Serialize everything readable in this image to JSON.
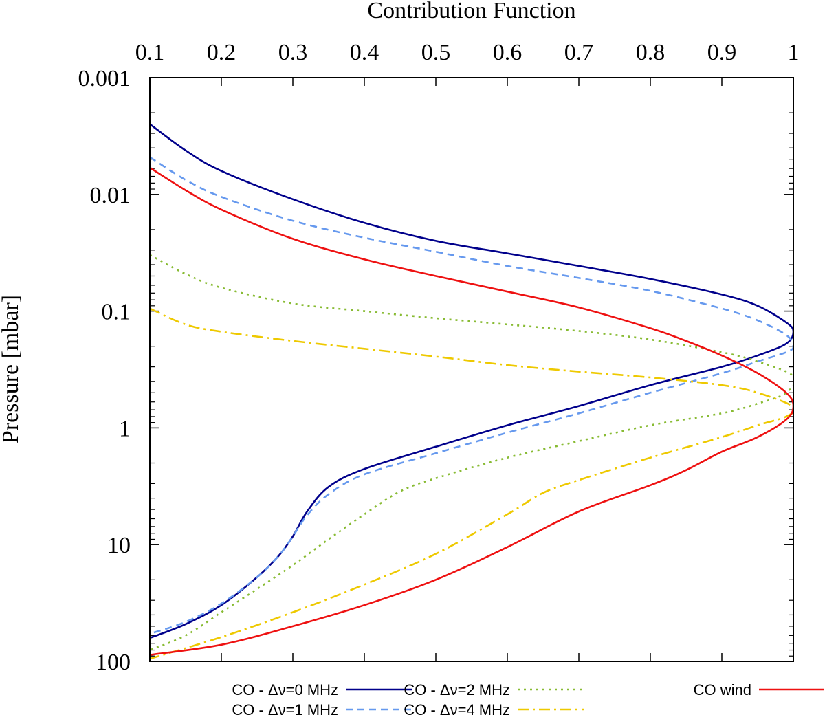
{
  "chart_data": {
    "type": "line",
    "title": "",
    "xlabel": "Contribution Function",
    "ylabel": "Pressure [mbar]",
    "x_axis_position": "top",
    "xlim": [
      0.1,
      1
    ],
    "ylim": [
      0.001,
      100
    ],
    "yscale": "log",
    "y_inverted": true,
    "grid": false,
    "legend_position": "bottom",
    "x_ticks": [
      0.1,
      0.2,
      0.3,
      0.4,
      0.5,
      0.6,
      0.7,
      0.8,
      0.9,
      1
    ],
    "x_tick_labels": [
      "0.1",
      "0.2",
      "0.3",
      "0.4",
      "0.5",
      "0.6",
      "0.7",
      "0.8",
      "0.9",
      "1"
    ],
    "y_ticks": [
      0.001,
      0.01,
      0.1,
      1,
      10,
      100
    ],
    "y_tick_labels": [
      "0.001",
      "0.01",
      "0.1",
      "1",
      "10",
      "100"
    ],
    "series": [
      {
        "name": "CO - Δν=0 MHz",
        "color": "#00008b",
        "dash": "solid",
        "points": [
          [
            0.1,
            0.0025
          ],
          [
            0.15,
            0.0042
          ],
          [
            0.2,
            0.0063
          ],
          [
            0.3,
            0.011
          ],
          [
            0.4,
            0.0175
          ],
          [
            0.5,
            0.025
          ],
          [
            0.6,
            0.032
          ],
          [
            0.7,
            0.041
          ],
          [
            0.8,
            0.053
          ],
          [
            0.9,
            0.072
          ],
          [
            0.95,
            0.09
          ],
          [
            0.99,
            0.125
          ],
          [
            1.0,
            0.15
          ],
          [
            0.99,
            0.19
          ],
          [
            0.95,
            0.24
          ],
          [
            0.9,
            0.3
          ],
          [
            0.8,
            0.43
          ],
          [
            0.7,
            0.65
          ],
          [
            0.6,
            0.95
          ],
          [
            0.5,
            1.45
          ],
          [
            0.4,
            2.25
          ],
          [
            0.35,
            3.2
          ],
          [
            0.32,
            5.2
          ],
          [
            0.3,
            8.5
          ],
          [
            0.28,
            12.5
          ],
          [
            0.25,
            19
          ],
          [
            0.2,
            33
          ],
          [
            0.15,
            48
          ],
          [
            0.1,
            63
          ]
        ]
      },
      {
        "name": "CO - Δν=1 MHz",
        "color": "#6699ee",
        "dash": "dashed",
        "points": [
          [
            0.1,
            0.0048
          ],
          [
            0.15,
            0.0075
          ],
          [
            0.2,
            0.0105
          ],
          [
            0.3,
            0.0168
          ],
          [
            0.4,
            0.0235
          ],
          [
            0.5,
            0.031
          ],
          [
            0.6,
            0.041
          ],
          [
            0.7,
            0.052
          ],
          [
            0.8,
            0.067
          ],
          [
            0.9,
            0.095
          ],
          [
            0.95,
            0.12
          ],
          [
            0.99,
            0.16
          ],
          [
            1.0,
            0.2
          ],
          [
            0.99,
            0.225
          ],
          [
            0.95,
            0.27
          ],
          [
            0.9,
            0.34
          ],
          [
            0.8,
            0.5
          ],
          [
            0.7,
            0.75
          ],
          [
            0.6,
            1.1
          ],
          [
            0.5,
            1.65
          ],
          [
            0.4,
            2.5
          ],
          [
            0.35,
            3.7
          ],
          [
            0.32,
            5.6
          ],
          [
            0.3,
            8.5
          ],
          [
            0.28,
            12.5
          ],
          [
            0.25,
            19
          ],
          [
            0.2,
            32
          ],
          [
            0.15,
            46
          ],
          [
            0.1,
            58
          ]
        ]
      },
      {
        "name": "CO - Δν=2 MHz",
        "color": "#88bb33",
        "dash": "dotted",
        "points": [
          [
            0.1,
            0.033
          ],
          [
            0.15,
            0.048
          ],
          [
            0.2,
            0.063
          ],
          [
            0.3,
            0.086
          ],
          [
            0.4,
            0.1
          ],
          [
            0.5,
            0.115
          ],
          [
            0.6,
            0.13
          ],
          [
            0.7,
            0.148
          ],
          [
            0.8,
            0.175
          ],
          [
            0.9,
            0.225
          ],
          [
            0.95,
            0.27
          ],
          [
            1.0,
            0.36
          ],
          [
            0.99,
            0.5
          ],
          [
            0.95,
            0.62
          ],
          [
            0.9,
            0.75
          ],
          [
            0.8,
            0.95
          ],
          [
            0.7,
            1.3
          ],
          [
            0.6,
            1.8
          ],
          [
            0.5,
            2.7
          ],
          [
            0.45,
            3.5
          ],
          [
            0.4,
            5.5
          ],
          [
            0.35,
            9
          ],
          [
            0.3,
            15
          ],
          [
            0.25,
            24
          ],
          [
            0.2,
            38
          ],
          [
            0.15,
            60
          ],
          [
            0.1,
            80
          ]
        ]
      },
      {
        "name": "CO - Δν=4 MHz",
        "color": "#eec900",
        "dash": "dashdot",
        "points": [
          [
            0.1,
            0.095
          ],
          [
            0.15,
            0.13
          ],
          [
            0.2,
            0.15
          ],
          [
            0.3,
            0.18
          ],
          [
            0.4,
            0.21
          ],
          [
            0.5,
            0.245
          ],
          [
            0.6,
            0.29
          ],
          [
            0.7,
            0.33
          ],
          [
            0.8,
            0.37
          ],
          [
            0.9,
            0.43
          ],
          [
            0.95,
            0.5
          ],
          [
            1.0,
            0.66
          ],
          [
            0.99,
            0.8
          ],
          [
            0.95,
            0.95
          ],
          [
            0.9,
            1.2
          ],
          [
            0.8,
            1.8
          ],
          [
            0.7,
            2.8
          ],
          [
            0.65,
            3.6
          ],
          [
            0.6,
            5.5
          ],
          [
            0.5,
            12
          ],
          [
            0.4,
            22
          ],
          [
            0.3,
            38
          ],
          [
            0.2,
            62
          ],
          [
            0.1,
            95
          ]
        ]
      },
      {
        "name": "CO wind",
        "color": "#ee1111",
        "dash": "solid",
        "points": [
          [
            0.1,
            0.0059
          ],
          [
            0.15,
            0.0092
          ],
          [
            0.2,
            0.0135
          ],
          [
            0.3,
            0.024
          ],
          [
            0.4,
            0.036
          ],
          [
            0.5,
            0.05
          ],
          [
            0.6,
            0.068
          ],
          [
            0.7,
            0.093
          ],
          [
            0.8,
            0.14
          ],
          [
            0.85,
            0.18
          ],
          [
            0.9,
            0.24
          ],
          [
            0.95,
            0.34
          ],
          [
            0.99,
            0.5
          ],
          [
            1.0,
            0.65
          ],
          [
            0.99,
            0.85
          ],
          [
            0.95,
            1.2
          ],
          [
            0.9,
            1.6
          ],
          [
            0.85,
            2.3
          ],
          [
            0.8,
            3.1
          ],
          [
            0.7,
            5.2
          ],
          [
            0.6,
            10.5
          ],
          [
            0.5,
            20
          ],
          [
            0.4,
            33
          ],
          [
            0.3,
            50
          ],
          [
            0.2,
            72
          ],
          [
            0.1,
            88
          ]
        ]
      }
    ],
    "legend": [
      {
        "label": "CO - Δν=0 MHz",
        "series": 0
      },
      {
        "label": "CO - Δν=1 MHz",
        "series": 1
      },
      {
        "label": "CO - Δν=2 MHz",
        "series": 2
      },
      {
        "label": "CO - Δν=4 MHz",
        "series": 3
      },
      {
        "label": "CO wind",
        "series": 4
      }
    ]
  }
}
